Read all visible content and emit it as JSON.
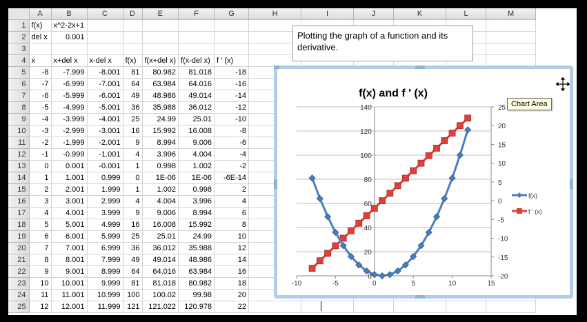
{
  "sheet": {
    "columns": [
      "A",
      "B",
      "C",
      "D",
      "E",
      "F",
      "G",
      "H",
      "I",
      "J",
      "K",
      "L",
      "M"
    ],
    "col_widths": [
      32,
      52,
      52,
      28,
      52,
      52,
      50,
      76,
      76,
      58,
      76,
      58,
      72
    ],
    "rows": [
      {
        "n": "1",
        "cells": [
          "f(x)",
          "x^2-2x+1",
          "",
          "",
          "",
          "",
          ""
        ]
      },
      {
        "n": "2",
        "cells": [
          "del x",
          "0.001",
          "",
          "",
          "",
          "",
          ""
        ]
      },
      {
        "n": "3",
        "cells": [
          "",
          "",
          "",
          "",
          "",
          "",
          ""
        ]
      },
      {
        "n": "4",
        "cells": [
          "x",
          "x+del x",
          "x-del x",
          "f(x)",
          "f(x+del x)",
          "f(x-del x)",
          "f ' (x)"
        ]
      },
      {
        "n": "5",
        "cells": [
          "-8",
          "-7.999",
          "-8.001",
          "81",
          "80.982",
          "81.018",
          "-18"
        ]
      },
      {
        "n": "6",
        "cells": [
          "-7",
          "-6.999",
          "-7.001",
          "64",
          "63.984",
          "64.016",
          "-16"
        ]
      },
      {
        "n": "7",
        "cells": [
          "-6",
          "-5.999",
          "-6.001",
          "49",
          "48.986",
          "49.014",
          "-14"
        ]
      },
      {
        "n": "8",
        "cells": [
          "-5",
          "-4.999",
          "-5.001",
          "36",
          "35.988",
          "36.012",
          "-12"
        ]
      },
      {
        "n": "9",
        "cells": [
          "-4",
          "-3.999",
          "-4.001",
          "25",
          "24.99",
          "25.01",
          "-10"
        ]
      },
      {
        "n": "10",
        "cells": [
          "-3",
          "-2.999",
          "-3.001",
          "16",
          "15.992",
          "16.008",
          "-8"
        ]
      },
      {
        "n": "11",
        "cells": [
          "-2",
          "-1.999",
          "-2.001",
          "9",
          "8.994",
          "9.006",
          "-6"
        ]
      },
      {
        "n": "12",
        "cells": [
          "-1",
          "-0.999",
          "-1.001",
          "4",
          "3.996",
          "4.004",
          "-4"
        ]
      },
      {
        "n": "13",
        "cells": [
          "0",
          "0.001",
          "-0.001",
          "1",
          "0.998",
          "1.002",
          "-2"
        ]
      },
      {
        "n": "14",
        "cells": [
          "1",
          "1.001",
          "0.999",
          "0",
          "1E-06",
          "1E-06",
          "-6E-14"
        ]
      },
      {
        "n": "15",
        "cells": [
          "2",
          "2.001",
          "1.999",
          "1",
          "1.002",
          "0.998",
          "2"
        ]
      },
      {
        "n": "16",
        "cells": [
          "3",
          "3.001",
          "2.999",
          "4",
          "4.004",
          "3.996",
          "4"
        ]
      },
      {
        "n": "17",
        "cells": [
          "4",
          "4.001",
          "3.999",
          "9",
          "9.006",
          "8.994",
          "6"
        ]
      },
      {
        "n": "18",
        "cells": [
          "5",
          "5.001",
          "4.999",
          "16",
          "16.008",
          "15.992",
          "8"
        ]
      },
      {
        "n": "19",
        "cells": [
          "6",
          "6.001",
          "5.999",
          "25",
          "25.01",
          "24.99",
          "10"
        ]
      },
      {
        "n": "20",
        "cells": [
          "7",
          "7.001",
          "6.999",
          "36",
          "36.012",
          "35.988",
          "12"
        ]
      },
      {
        "n": "21",
        "cells": [
          "8",
          "8.001",
          "7.999",
          "49",
          "49.014",
          "48.986",
          "14"
        ]
      },
      {
        "n": "22",
        "cells": [
          "9",
          "9.001",
          "8.999",
          "64",
          "64.016",
          "63.984",
          "16"
        ]
      },
      {
        "n": "23",
        "cells": [
          "10",
          "10.001",
          "9.999",
          "81",
          "81.018",
          "80.982",
          "18"
        ]
      },
      {
        "n": "24",
        "cells": [
          "11",
          "11.001",
          "10.999",
          "100",
          "100.02",
          "99.98",
          "20"
        ]
      },
      {
        "n": "25",
        "cells": [
          "12",
          "12.001",
          "11.999",
          "121",
          "121.022",
          "120.978",
          "22"
        ]
      }
    ]
  },
  "textbox": {
    "text": "Plotting the graph of a function and its derivative."
  },
  "tooltip": "Chart Area",
  "colors": {
    "fx": "#4a7ebb",
    "fpx": "#e0403a",
    "chart_border": "#b3cde8",
    "grid": "#bdbdbd"
  },
  "chart_data": {
    "type": "scatter",
    "title": "f(x) and f ' (x)",
    "x": [
      -8,
      -7,
      -6,
      -5,
      -4,
      -3,
      -2,
      -1,
      0,
      1,
      2,
      3,
      4,
      5,
      6,
      7,
      8,
      9,
      10,
      11,
      12
    ],
    "series": [
      {
        "name": "f(x)",
        "axis": "primary",
        "marker": "diamond",
        "values": [
          81,
          64,
          49,
          36,
          25,
          16,
          9,
          4,
          1,
          0,
          1,
          4,
          9,
          16,
          25,
          36,
          49,
          64,
          81,
          100,
          121
        ]
      },
      {
        "name": "f ' (x)",
        "axis": "secondary",
        "marker": "square",
        "values": [
          -18,
          -16,
          -14,
          -12,
          -10,
          -8,
          -6,
          -4,
          -2,
          0,
          2,
          4,
          6,
          8,
          10,
          12,
          14,
          16,
          18,
          20,
          22
        ]
      }
    ],
    "xlim": [
      -10,
      15
    ],
    "x_ticks": [
      -10,
      -5,
      0,
      5,
      10,
      15
    ],
    "ylim": [
      0,
      140
    ],
    "y_ticks": [
      20,
      40,
      60,
      80,
      100,
      120,
      140
    ],
    "y2lim": [
      -20,
      25
    ],
    "y2_ticks": [
      -20,
      -15,
      -10,
      -5,
      0,
      5,
      10,
      15,
      20,
      25
    ],
    "grid": true,
    "legend": "right"
  }
}
